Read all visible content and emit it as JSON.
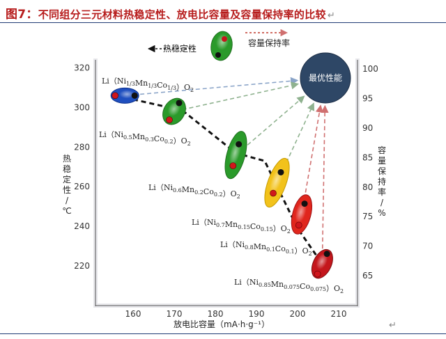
{
  "figure": {
    "label": "图7：",
    "title": "不同组分三元材料热稳定性、放电比容量及容量保持率的比较",
    "return_mark": "↵",
    "end_mark": "↵"
  },
  "colors": {
    "title": "#b71c1c",
    "rule": "#1f3b74",
    "best_circle": "#2e4766",
    "thermal_line": "#111111",
    "arrow_blue": "#8aa4c8",
    "arrow_green": "#8fb28f",
    "arrow_red": "#d07070"
  },
  "chart_data": {
    "type": "scatter",
    "xlabel": "放电比容量（mA·h·g⁻¹）",
    "ylabel_left": "热稳定性/℃",
    "ylabel_right": "容量保持率/%",
    "x_ticks": [
      160,
      170,
      180,
      190,
      200,
      210
    ],
    "y_left_ticks": [
      220,
      240,
      260,
      280,
      300,
      320
    ],
    "y_right_ticks": [
      65,
      70,
      75,
      80,
      85,
      90,
      95,
      100
    ],
    "xlim": [
      150,
      215
    ],
    "ylim_left": [
      210,
      325
    ],
    "ylim_right": [
      62.5,
      101.5
    ],
    "grid": false,
    "annotations": {
      "thermal_label": "热稳定性",
      "retention_label": "容量保持率",
      "best_label": "最优性能"
    },
    "series": [
      {
        "material": "Li（Ni1/3Mn1/3Co1/3）O2",
        "color": "#1f4fbf",
        "capacity": 158,
        "thermal": 306,
        "retention": 95,
        "label_parts": [
          [
            "Li（Ni",
            ""
          ],
          [
            "1/3",
            "s"
          ],
          [
            "Mn",
            ""
          ],
          [
            "1/3",
            "s"
          ],
          [
            "Co",
            ""
          ],
          [
            "1/3",
            "s"
          ],
          [
            "）O",
            ""
          ],
          [
            "2",
            "s"
          ]
        ]
      },
      {
        "material": "Li（Ni0.5Mn0.3Co0.2）O2",
        "color": "#2a9a2a",
        "capacity": 170,
        "thermal": 298,
        "retention": 93,
        "label_parts": [
          [
            "Li（Ni",
            ""
          ],
          [
            "0.5",
            "s"
          ],
          [
            "Mn",
            ""
          ],
          [
            "0.3",
            "s"
          ],
          [
            "Co",
            ""
          ],
          [
            "0.2",
            "s"
          ],
          [
            "）O",
            ""
          ],
          [
            "2",
            "s"
          ]
        ]
      },
      {
        "material": "Li（Ni0.6Mn0.2Co0.2）O2",
        "color": "#2a9a2a",
        "capacity": 185,
        "thermal": 276,
        "retention": 88,
        "label_parts": [
          [
            "Li（Ni",
            ""
          ],
          [
            "0.6",
            "s"
          ],
          [
            "Mn",
            ""
          ],
          [
            "0.2",
            "s"
          ],
          [
            "Co",
            ""
          ],
          [
            "0.2",
            "s"
          ],
          [
            "）O",
            ""
          ],
          [
            "2",
            "s"
          ]
        ]
      },
      {
        "material": "Li（Ni0.7Mn0.15Co0.15）O2",
        "color": "#f2c21b",
        "capacity": 195,
        "thermal": 262,
        "retention": 85,
        "label_parts": [
          [
            "Li（Ni",
            ""
          ],
          [
            "0.7",
            "s"
          ],
          [
            "Mn",
            ""
          ],
          [
            "0.15",
            "s"
          ],
          [
            "Co",
            ""
          ],
          [
            "0.15",
            "s"
          ],
          [
            "）O",
            ""
          ],
          [
            "2",
            "s"
          ]
        ]
      },
      {
        "material": "Li（Ni0.8Mn0.1Co0.1）O2",
        "color": "#e0261d",
        "capacity": 201,
        "thermal": 246,
        "retention": 77,
        "label_parts": [
          [
            "Li（Ni",
            ""
          ],
          [
            "0.8",
            "s"
          ],
          [
            "Mn",
            ""
          ],
          [
            "0.1",
            "s"
          ],
          [
            "Co",
            ""
          ],
          [
            "0.1",
            "s"
          ],
          [
            "）O",
            ""
          ],
          [
            "2",
            "s"
          ]
        ]
      },
      {
        "material": "Li（Ni0.85Mn0.075Co0.075）O2",
        "color": "#c4161c",
        "capacity": 206,
        "thermal": 221,
        "retention": 68,
        "label_parts": [
          [
            "Li（Ni",
            ""
          ],
          [
            "0.85",
            "s"
          ],
          [
            "Mn",
            ""
          ],
          [
            "0.075",
            "s"
          ],
          [
            "Co",
            ""
          ],
          [
            "0.075",
            "s"
          ],
          [
            "）O",
            ""
          ],
          [
            "2",
            "s"
          ]
        ]
      }
    ]
  }
}
